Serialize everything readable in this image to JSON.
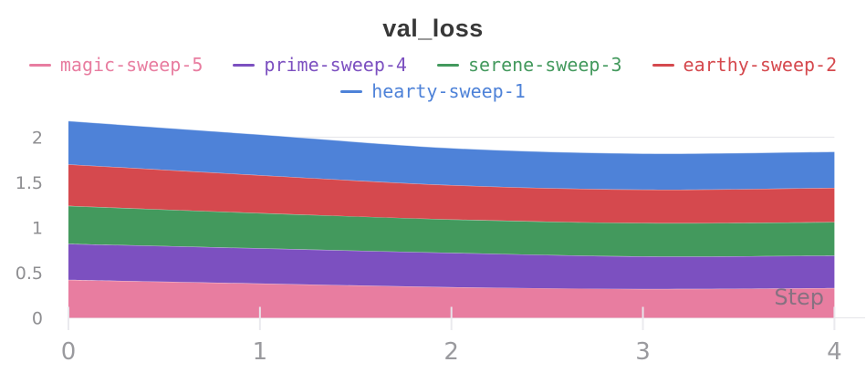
{
  "chart_data": {
    "type": "area",
    "stacked": true,
    "title": "val_loss",
    "xlabel": "Step",
    "ylabel": "",
    "x": [
      0,
      1,
      2,
      3,
      4
    ],
    "x_ticks": [
      "0",
      "1",
      "2",
      "3",
      "4"
    ],
    "y_ticks": [
      0,
      0.5,
      1,
      1.5,
      2
    ],
    "xlim": [
      0,
      4
    ],
    "ylim": [
      0,
      2.33
    ],
    "grid": "horizontal-light",
    "legend_position": "top",
    "series": [
      {
        "name": "magic-sweep-5",
        "color": "#e87da0",
        "values": [
          0.42,
          0.38,
          0.34,
          0.32,
          0.33
        ]
      },
      {
        "name": "prime-sweep-4",
        "color": "#7c50c0",
        "values": [
          0.4,
          0.39,
          0.38,
          0.36,
          0.36
        ]
      },
      {
        "name": "serene-sweep-3",
        "color": "#43995d",
        "values": [
          0.42,
          0.39,
          0.37,
          0.37,
          0.37
        ]
      },
      {
        "name": "earthy-sweep-2",
        "color": "#d5494e",
        "values": [
          0.46,
          0.42,
          0.38,
          0.37,
          0.38
        ]
      },
      {
        "name": "hearty-sweep-1",
        "color": "#4e82d8",
        "values": [
          0.48,
          0.45,
          0.41,
          0.4,
          0.4
        ]
      }
    ],
    "legend_rows": [
      [
        0,
        1,
        2,
        3
      ],
      [
        4
      ]
    ],
    "cumulative_totals": [
      2.18,
      2.03,
      1.88,
      1.82,
      1.84
    ]
  },
  "style_colors": {
    "grid_line": "#e8e8ec",
    "tick_mark": "#e9e9ee",
    "y_tick_label": "#8f8f92",
    "x_tick_label": "#9a9a9e",
    "title_text": "#383838",
    "step_label": "#6f6f7a"
  }
}
